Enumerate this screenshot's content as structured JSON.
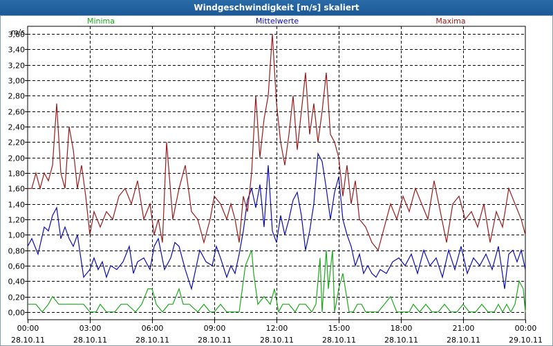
{
  "window": {
    "title": "Windgeschwindigkeit [m/s] skaliert"
  },
  "chart_data": {
    "type": "line",
    "title": "Windgeschwindigkeit [m/s] skaliert",
    "ylabel": "m/s",
    "xlabel": "",
    "ylim": [
      -0.1,
      3.7
    ],
    "xlim": [
      0,
      24
    ],
    "grid": true,
    "legend_position": "top",
    "ytick_labels": [
      "0,00",
      "0,20",
      "0,40",
      "0,60",
      "0,80",
      "1,00",
      "1,20",
      "1,40",
      "1,60",
      "1,80",
      "2,00",
      "2,20",
      "2,40",
      "2,60",
      "2,80",
      "3,00",
      "3,20",
      "3,40",
      "3,60"
    ],
    "ytick_values": [
      0,
      0.2,
      0.4,
      0.6,
      0.8,
      1.0,
      1.2,
      1.4,
      1.6,
      1.8,
      2.0,
      2.2,
      2.4,
      2.6,
      2.8,
      3.0,
      3.2,
      3.4,
      3.6
    ],
    "xtick_values": [
      0,
      3,
      6,
      9,
      12,
      15,
      18,
      21,
      24
    ],
    "xtick_times": [
      "00:00",
      "03:00",
      "06:00",
      "09:00",
      "12:00",
      "15:00",
      "18:00",
      "21:00",
      "00:00"
    ],
    "xtick_dates": [
      "28.10.11",
      "28.10.11",
      "28.10.11",
      "28.10.11",
      "28.10.11",
      "28.10.11",
      "28.10.11",
      "28.10.11",
      "29.10.11"
    ],
    "series": [
      {
        "name": "Minima",
        "color": "#1aaa1a",
        "x": [
          0,
          0.4,
          0.7,
          1.0,
          1.2,
          1.5,
          2.0,
          2.5,
          2.7,
          3.0,
          3.3,
          3.5,
          3.8,
          4.2,
          4.5,
          4.8,
          5.2,
          5.5,
          5.8,
          6.0,
          6.2,
          6.5,
          6.8,
          7.0,
          7.3,
          7.5,
          7.8,
          8.2,
          8.5,
          8.8,
          9.0,
          9.3,
          9.6,
          9.9,
          10.2,
          10.5,
          10.8,
          10.9,
          11.1,
          11.4,
          11.7,
          11.9,
          12.1,
          12.3,
          12.6,
          12.9,
          13.1,
          13.4,
          13.7,
          13.9,
          14.1,
          14.2,
          14.4,
          14.5,
          14.7,
          14.8,
          15.0,
          15.2,
          15.5,
          15.7,
          15.9,
          16.1,
          16.3,
          16.6,
          16.9,
          17.2,
          17.5,
          17.8,
          18.1,
          18.4,
          18.6,
          18.9,
          19.2,
          19.5,
          19.8,
          20.1,
          20.4,
          20.7,
          21.0,
          21.3,
          21.6,
          21.9,
          22.2,
          22.5,
          22.7,
          22.9,
          23.1,
          23.3,
          23.5,
          23.7,
          23.9,
          24.0
        ],
        "values": [
          0.1,
          0.1,
          0,
          0.1,
          0.2,
          0.1,
          0.1,
          0.1,
          0.1,
          0,
          0,
          0.1,
          0,
          0,
          0.1,
          0.1,
          0,
          0.1,
          0.3,
          0.3,
          0.1,
          0,
          0.1,
          0.1,
          0.3,
          0.1,
          0.1,
          0,
          0.1,
          0,
          0,
          0.1,
          0,
          0,
          0,
          0.6,
          0.8,
          0.5,
          0.1,
          0.2,
          0.1,
          0.3,
          0,
          0.1,
          0.1,
          0,
          0.1,
          0.1,
          0,
          0.1,
          0.7,
          0,
          0.8,
          0.3,
          0.8,
          0,
          0.3,
          0.5,
          0,
          0,
          0.1,
          0.1,
          0,
          0,
          0,
          0.1,
          0.2,
          0,
          0,
          0,
          0.1,
          0,
          0.1,
          0,
          0,
          0.1,
          0,
          0,
          0.1,
          0,
          0,
          0.1,
          0,
          0,
          0.1,
          0,
          0.1,
          0,
          0.1,
          0.4,
          0.3,
          0
        ]
      },
      {
        "name": "Mittelwerte",
        "color": "#0b0bb5",
        "x": [
          0,
          0.2,
          0.5,
          0.8,
          1.0,
          1.2,
          1.4,
          1.6,
          1.8,
          2.0,
          2.2,
          2.4,
          2.7,
          3.0,
          3.2,
          3.4,
          3.6,
          3.8,
          4.0,
          4.3,
          4.6,
          4.9,
          5.1,
          5.3,
          5.6,
          5.9,
          6.1,
          6.3,
          6.6,
          6.9,
          7.1,
          7.3,
          7.6,
          7.9,
          8.1,
          8.3,
          8.6,
          8.9,
          9.1,
          9.3,
          9.6,
          9.8,
          10.0,
          10.2,
          10.4,
          10.6,
          10.8,
          11.0,
          11.2,
          11.4,
          11.6,
          11.8,
          12.0,
          12.2,
          12.4,
          12.6,
          12.8,
          13.0,
          13.2,
          13.4,
          13.6,
          13.8,
          14.0,
          14.2,
          14.4,
          14.6,
          14.8,
          15.0,
          15.2,
          15.4,
          15.6,
          15.8,
          16.0,
          16.2,
          16.4,
          16.6,
          16.8,
          17.0,
          17.3,
          17.6,
          17.9,
          18.2,
          18.5,
          18.8,
          19.1,
          19.4,
          19.7,
          20.0,
          20.3,
          20.6,
          20.9,
          21.2,
          21.5,
          21.8,
          22.1,
          22.4,
          22.7,
          23.0,
          23.2,
          23.4,
          23.6,
          23.8,
          24.0
        ],
        "values": [
          0.85,
          0.95,
          0.75,
          1.1,
          1.05,
          1.25,
          1.35,
          0.95,
          1.1,
          0.95,
          0.85,
          1.0,
          0.45,
          0.55,
          0.7,
          0.55,
          0.65,
          0.45,
          0.6,
          0.55,
          0.65,
          0.85,
          0.5,
          0.65,
          0.7,
          0.55,
          0.85,
          0.95,
          0.55,
          0.7,
          0.9,
          0.85,
          0.55,
          0.3,
          0.55,
          0.8,
          0.65,
          0.6,
          0.85,
          0.7,
          0.45,
          0.6,
          0.5,
          0.75,
          1.05,
          1.45,
          1.6,
          1.35,
          1.65,
          1.1,
          1.9,
          1.05,
          0.9,
          1.25,
          1.0,
          1.2,
          1.45,
          1.55,
          1.25,
          0.8,
          1.05,
          1.4,
          2.05,
          1.95,
          1.6,
          1.2,
          1.55,
          1.75,
          1.2,
          1.0,
          0.85,
          0.6,
          0.75,
          0.5,
          0.6,
          0.5,
          0.45,
          0.55,
          0.5,
          0.65,
          0.7,
          0.6,
          0.75,
          0.5,
          0.8,
          0.6,
          0.7,
          0.45,
          0.8,
          0.55,
          0.85,
          0.5,
          0.7,
          0.6,
          0.75,
          0.55,
          0.85,
          0.3,
          0.75,
          0.8,
          0.65,
          0.8,
          0.55
        ]
      },
      {
        "name": "Maxima",
        "color": "#9b1a1a",
        "x": [
          0,
          0.2,
          0.4,
          0.6,
          0.8,
          1.0,
          1.2,
          1.4,
          1.6,
          1.8,
          2.0,
          2.2,
          2.4,
          2.6,
          2.8,
          3.0,
          3.2,
          3.5,
          3.8,
          4.1,
          4.4,
          4.7,
          5.0,
          5.3,
          5.6,
          5.9,
          6.1,
          6.3,
          6.5,
          6.7,
          7.0,
          7.3,
          7.6,
          7.9,
          8.2,
          8.5,
          8.8,
          9.0,
          9.3,
          9.6,
          9.8,
          10.0,
          10.2,
          10.4,
          10.6,
          10.8,
          11.0,
          11.2,
          11.4,
          11.6,
          11.8,
          12.0,
          12.2,
          12.4,
          12.6,
          12.8,
          13.0,
          13.2,
          13.4,
          13.6,
          13.8,
          14.0,
          14.2,
          14.4,
          14.6,
          14.8,
          15.0,
          15.2,
          15.4,
          15.6,
          15.8,
          16.0,
          16.3,
          16.6,
          16.9,
          17.2,
          17.5,
          17.8,
          18.1,
          18.4,
          18.7,
          19.0,
          19.3,
          19.6,
          19.9,
          20.2,
          20.5,
          20.8,
          21.1,
          21.4,
          21.7,
          22.0,
          22.3,
          22.6,
          22.9,
          23.2,
          23.5,
          23.8,
          24.0
        ],
        "values": [
          1.6,
          1.6,
          1.8,
          1.6,
          1.8,
          1.7,
          1.9,
          2.7,
          1.8,
          1.6,
          2.4,
          2.1,
          1.6,
          1.9,
          1.5,
          1.0,
          1.3,
          1.1,
          1.3,
          1.2,
          1.5,
          1.6,
          1.4,
          1.7,
          1.2,
          1.4,
          1.0,
          1.2,
          0.9,
          2.2,
          1.2,
          1.6,
          1.9,
          1.3,
          1.2,
          0.9,
          1.2,
          1.5,
          1.4,
          1.2,
          1.4,
          1.2,
          0.9,
          1.5,
          1.3,
          1.8,
          2.8,
          2.0,
          2.5,
          2.8,
          3.6,
          2.7,
          2.2,
          1.9,
          2.3,
          2.8,
          2.1,
          2.6,
          3.1,
          2.3,
          2.7,
          2.2,
          2.6,
          3.1,
          2.3,
          2.2,
          2.0,
          1.5,
          1.9,
          1.4,
          1.7,
          1.2,
          1.1,
          0.9,
          0.8,
          1.1,
          1.4,
          1.2,
          1.5,
          1.3,
          1.6,
          1.4,
          1.2,
          1.7,
          1.3,
          0.9,
          1.4,
          1.5,
          1.2,
          1.3,
          1.1,
          1.4,
          0.9,
          1.3,
          1.1,
          1.6,
          1.4,
          1.2,
          1.0
        ]
      }
    ]
  }
}
